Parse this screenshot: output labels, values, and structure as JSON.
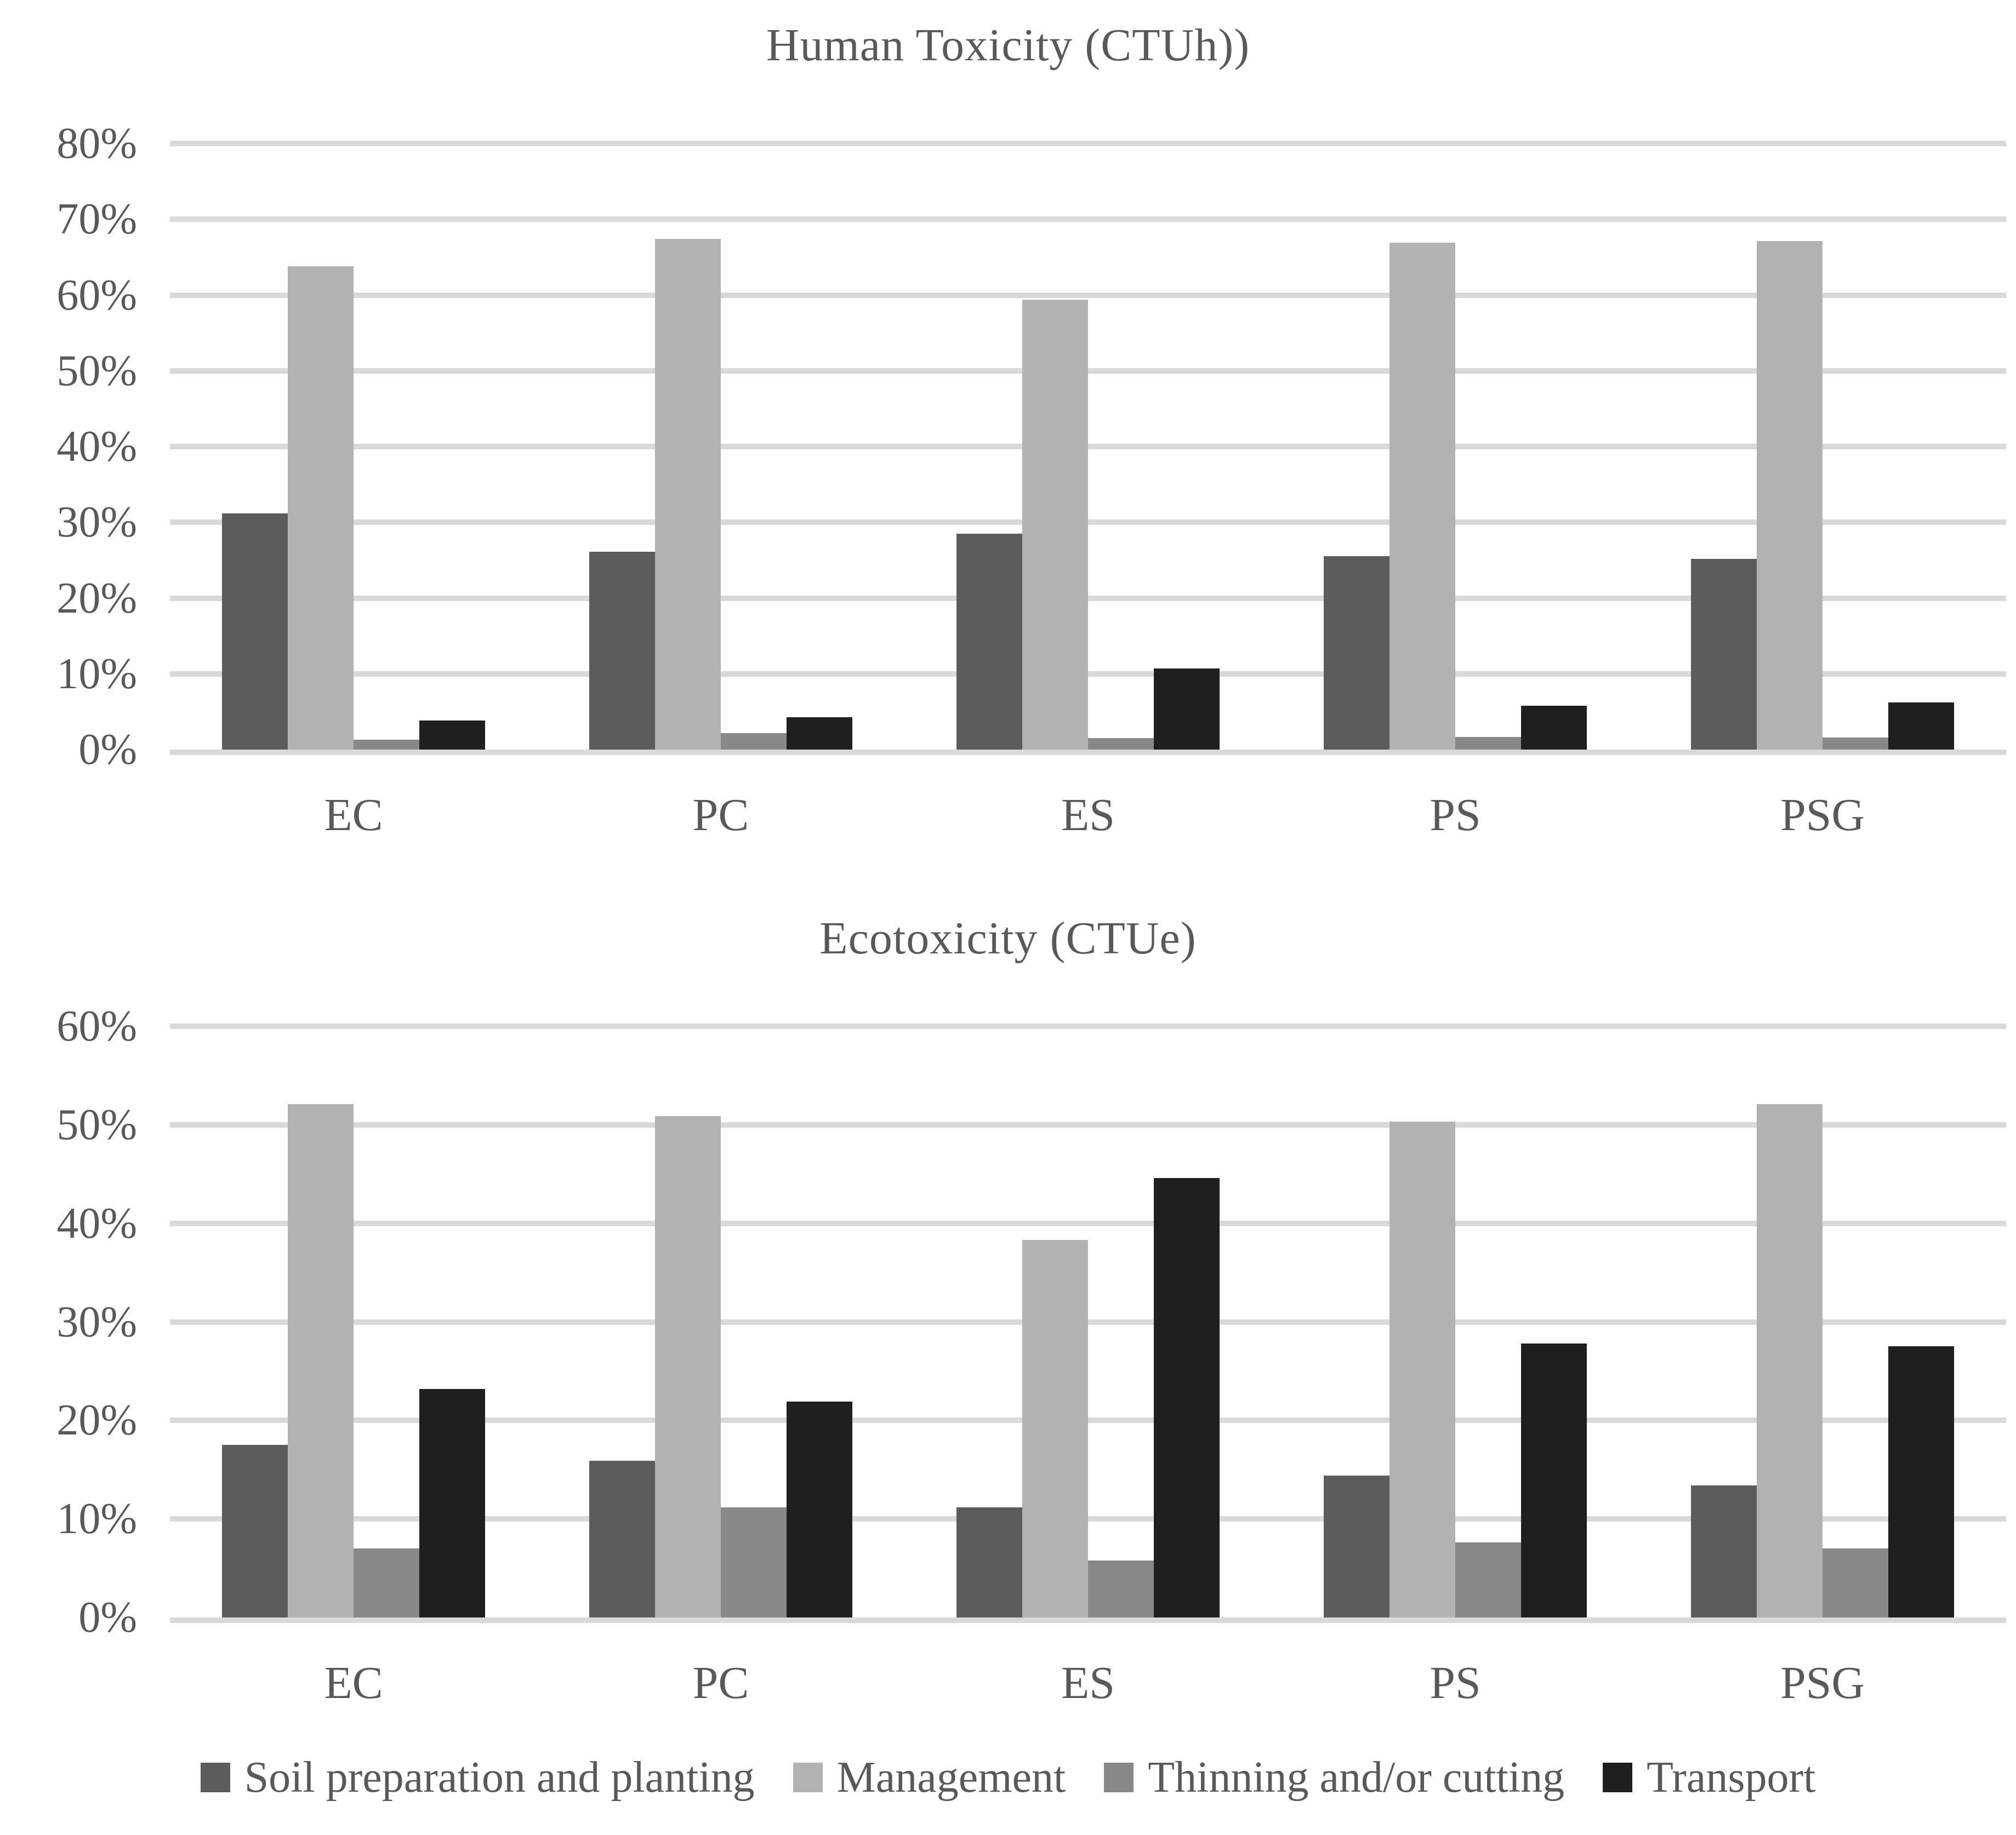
{
  "colors": {
    "text": "#595959",
    "gridline": "#d9d9d9",
    "background": "#ffffff",
    "soil": "#5c5c5c",
    "management": "#b2b2b2",
    "thinning": "#888888",
    "transport": "#1f1f1f"
  },
  "legend": {
    "items": [
      {
        "label": "Soil preparation and planting",
        "color": "#5c5c5c"
      },
      {
        "label": "Management",
        "color": "#b2b2b2"
      },
      {
        "label": "Thinning and/or cutting",
        "color": "#888888"
      },
      {
        "label": "Transport",
        "color": "#1f1f1f"
      }
    ]
  },
  "chart_data": [
    {
      "type": "bar",
      "title": "Human Toxicity (CTUh))",
      "categories": [
        "EC",
        "PC",
        "ES",
        "PS",
        "PSG"
      ],
      "series": [
        {
          "name": "Soil preparation and planting",
          "color": "#5c5c5c",
          "values": [
            31.2,
            26.1,
            28.5,
            25.5,
            25.2
          ]
        },
        {
          "name": "Management",
          "color": "#b2b2b2",
          "values": [
            63.8,
            67.4,
            59.4,
            66.9,
            67.1
          ]
        },
        {
          "name": "Thinning and/or cutting",
          "color": "#888888",
          "values": [
            1.3,
            2.2,
            1.5,
            1.7,
            1.6
          ]
        },
        {
          "name": "Transport",
          "color": "#1f1f1f",
          "values": [
            3.8,
            4.3,
            10.7,
            5.8,
            6.2
          ]
        }
      ],
      "ylabel": "",
      "xlabel": "",
      "ylim": [
        0,
        80
      ],
      "ytick_step": 10,
      "ytick_labels": [
        "0%",
        "10%",
        "20%",
        "30%",
        "40%",
        "50%",
        "60%",
        "70%",
        "80%"
      ],
      "grid": true,
      "legend_position": "shared-bottom"
    },
    {
      "type": "bar",
      "title": "Ecotoxicity (CTUe)",
      "categories": [
        "EC",
        "PC",
        "ES",
        "PS",
        "PSG"
      ],
      "series": [
        {
          "name": "Soil preparation and planting",
          "color": "#5c5c5c",
          "values": [
            17.5,
            15.9,
            11.2,
            14.4,
            13.4
          ]
        },
        {
          "name": "Management",
          "color": "#b2b2b2",
          "values": [
            52.1,
            50.9,
            38.3,
            50.3,
            52.1
          ]
        },
        {
          "name": "Thinning and/or cutting",
          "color": "#888888",
          "values": [
            7.0,
            11.2,
            5.8,
            7.6,
            7.0
          ]
        },
        {
          "name": "Transport",
          "color": "#1f1f1f",
          "values": [
            23.2,
            21.9,
            44.6,
            27.8,
            27.5
          ]
        }
      ],
      "ylabel": "",
      "xlabel": "",
      "ylim": [
        0,
        60
      ],
      "ytick_step": 10,
      "ytick_labels": [
        "0%",
        "10%",
        "20%",
        "30%",
        "40%",
        "50%",
        "60%"
      ],
      "grid": true,
      "legend_position": "shared-bottom"
    }
  ]
}
